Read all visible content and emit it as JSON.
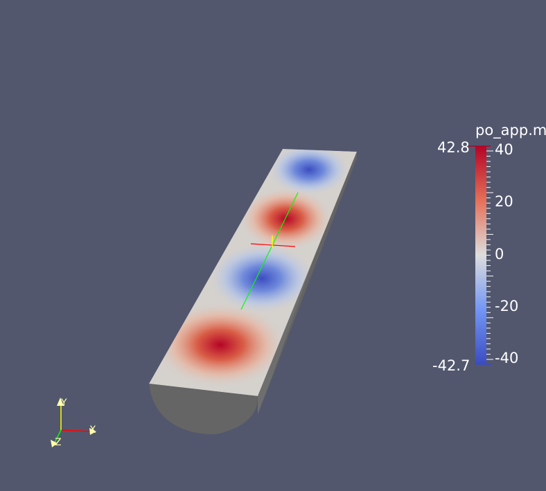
{
  "colorbar": {
    "title": "po_app.m",
    "max_label": "42.8",
    "min_label": "-42.7",
    "ticks": [
      "40",
      "20",
      "0",
      "-20",
      "-40"
    ],
    "colormap": [
      "#3b4cc0",
      "#dddddd",
      "#b40426"
    ]
  },
  "orientation_axes": {
    "x": "X",
    "y": "Y",
    "z": "Z"
  },
  "colors": {
    "background": "#52576e",
    "axis_x": "#ff0000",
    "axis_y": "#ffff00",
    "axis_z": "#00ff00",
    "beam_side": "#6e6e6e",
    "beam_end": "#656565"
  }
}
